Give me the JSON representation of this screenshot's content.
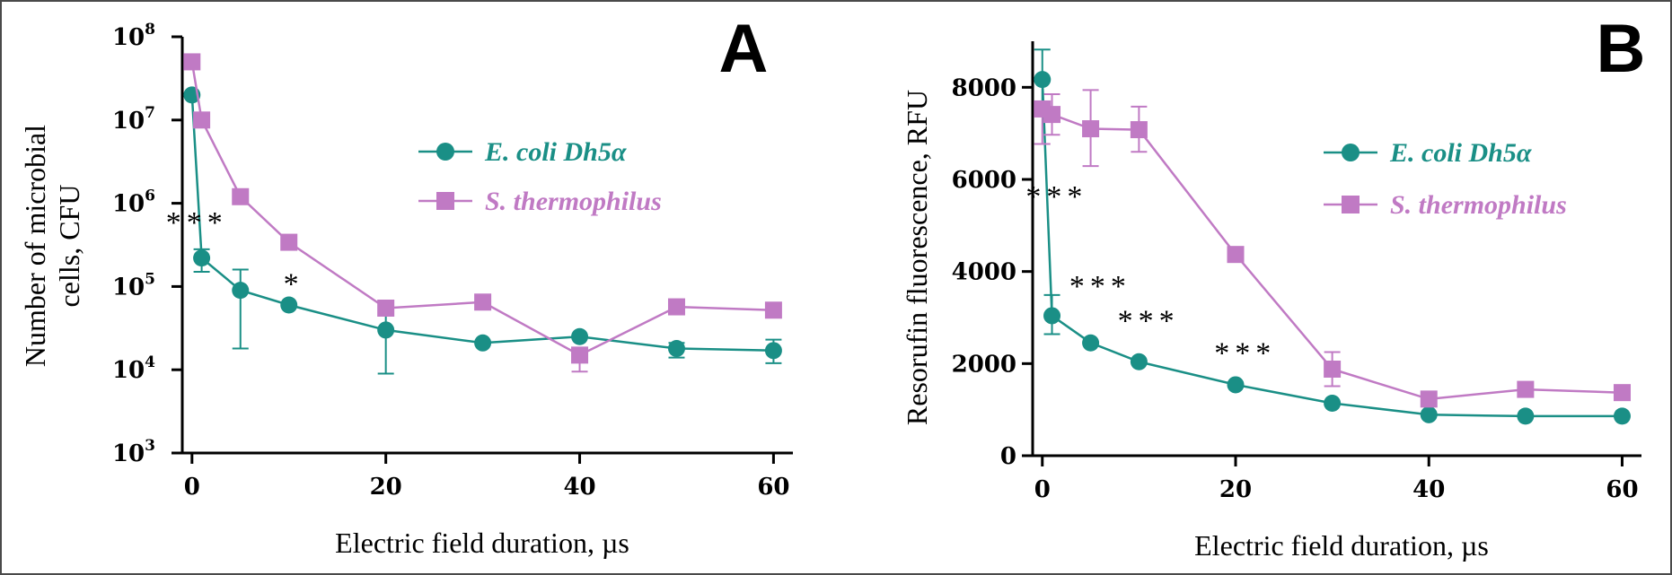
{
  "chart_data": [
    {
      "panel": "A",
      "type": "line",
      "xlabel": "Electric field duration, µs",
      "ylabel": [
        "Number of microbial",
        "cells, CFU"
      ],
      "yscale": "log",
      "xlim": [
        -1,
        62
      ],
      "ylim": [
        1000,
        100000000
      ],
      "x_ticks": [
        0,
        20,
        40,
        60
      ],
      "y_ticks": [
        {
          "base": "10",
          "exp": "3"
        },
        {
          "base": "10",
          "exp": "4"
        },
        {
          "base": "10",
          "exp": "5"
        },
        {
          "base": "10",
          "exp": "6"
        },
        {
          "base": "10",
          "exp": "7"
        },
        {
          "base": "10",
          "exp": "8"
        }
      ],
      "legend": "center-right",
      "series": [
        {
          "name": "E. coli Dh5α",
          "color": "#1a8f86",
          "marker": "circle",
          "x": [
            0,
            1,
            5,
            10,
            20,
            30,
            40,
            50,
            60
          ],
          "y": [
            20000000,
            220000,
            90000,
            60000,
            30000,
            21000,
            25000,
            18000,
            17000
          ],
          "err_lo": [
            0,
            70000,
            72000,
            0,
            21000,
            0,
            0,
            4000,
            5000
          ],
          "err_hi": [
            0,
            60000,
            70000,
            0,
            20000,
            0,
            0,
            3000,
            6000
          ]
        },
        {
          "name": "S. thermophilus",
          "color": "#c07ac4",
          "marker": "square",
          "x": [
            0,
            1,
            5,
            10,
            20,
            30,
            40,
            50,
            60
          ],
          "y": [
            50000000,
            10000000,
            1200000,
            340000,
            55000,
            65000,
            15000,
            57000,
            52000
          ],
          "err_lo": [
            0,
            0,
            0,
            0,
            0,
            0,
            5500,
            0,
            0
          ],
          "err_hi": [
            0,
            0,
            0,
            0,
            0,
            0,
            0,
            0,
            0
          ]
        }
      ],
      "annotations": [
        {
          "text": "***",
          "x": 0.5,
          "y": 600000
        },
        {
          "text": "*",
          "x": 10.5,
          "y": 110000
        }
      ]
    },
    {
      "panel": "B",
      "type": "line",
      "xlabel": "Electric field duration, µs",
      "ylabel": [
        "Resorufin fluorescence, RFU"
      ],
      "yscale": "linear",
      "xlim": [
        -1,
        62
      ],
      "ylim": [
        0,
        9000
      ],
      "x_ticks": [
        0,
        20,
        40,
        60
      ],
      "y_ticks": [
        0,
        2000,
        4000,
        6000,
        8000
      ],
      "legend": "center-right",
      "series": [
        {
          "name": "E. coli Dh5α",
          "color": "#1a8f86",
          "marker": "circle",
          "x": [
            0,
            1,
            5,
            10,
            20,
            30,
            40,
            50,
            60
          ],
          "y": [
            8170,
            3040,
            2450,
            2040,
            1540,
            1140,
            890,
            860,
            860
          ],
          "err_lo": [
            650,
            400,
            0,
            0,
            0,
            0,
            0,
            0,
            0
          ],
          "err_hi": [
            650,
            450,
            0,
            0,
            0,
            0,
            0,
            0,
            0
          ]
        },
        {
          "name": "S. thermophilus",
          "color": "#c07ac4",
          "marker": "square",
          "x": [
            0,
            1,
            5,
            10,
            20,
            30,
            40,
            50,
            60
          ],
          "y": [
            7530,
            7410,
            7100,
            7080,
            4370,
            1880,
            1230,
            1440,
            1370
          ],
          "err_lo": [
            760,
            440,
            810,
            480,
            0,
            370,
            0,
            0,
            0
          ],
          "err_hi": [
            0,
            440,
            840,
            500,
            0,
            370,
            0,
            0,
            0
          ]
        }
      ],
      "annotations": [
        {
          "text": "***",
          "x": 1.5,
          "y": 5650
        },
        {
          "text": "***",
          "x": 6,
          "y": 3700
        },
        {
          "text": "***",
          "x": 11,
          "y": 2950
        },
        {
          "text": "***",
          "x": 21,
          "y": 2250
        }
      ]
    }
  ]
}
